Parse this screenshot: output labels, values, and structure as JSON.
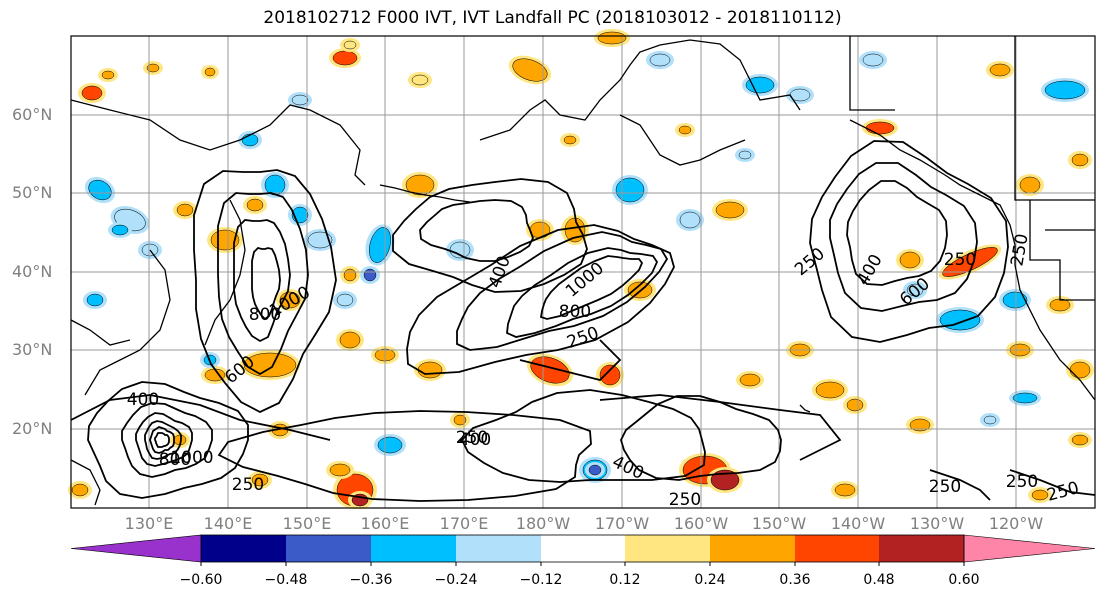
{
  "title": "2018102712 F000 IVT, IVT Landfall PC (2018103012 - 2018110112)",
  "lat_labels": [
    "60°N",
    "50°N",
    "40°N",
    "30°N",
    "20°N"
  ],
  "lon_labels": [
    "130°E",
    "140°E",
    "150°E",
    "160°E",
    "170°E",
    "180°W",
    "170°W",
    "160°W",
    "150°W",
    "140°W",
    "130°W",
    "120°W"
  ],
  "contour_labels": [
    "400",
    "250",
    "800",
    "1000",
    "400",
    "250",
    "600",
    "800",
    "1000",
    "400",
    "250",
    "250",
    "400",
    "600",
    "250",
    "400",
    "250",
    "800",
    "1000",
    "250",
    "250",
    "250",
    "250"
  ],
  "colorbar": {
    "tick_labels": [
      "−0.60",
      "−0.48",
      "−0.36",
      "−0.24",
      "−0.12",
      "0.12",
      "0.24",
      "0.36",
      "0.48",
      "0.60"
    ],
    "colors": [
      "#9932cc",
      "#00008b",
      "#3a5bc8",
      "#00bfff",
      "#b0e0fa",
      "#ffffff",
      "#ffe680",
      "#ffa500",
      "#ff4500",
      "#b22222",
      "#ff85a8"
    ]
  }
}
